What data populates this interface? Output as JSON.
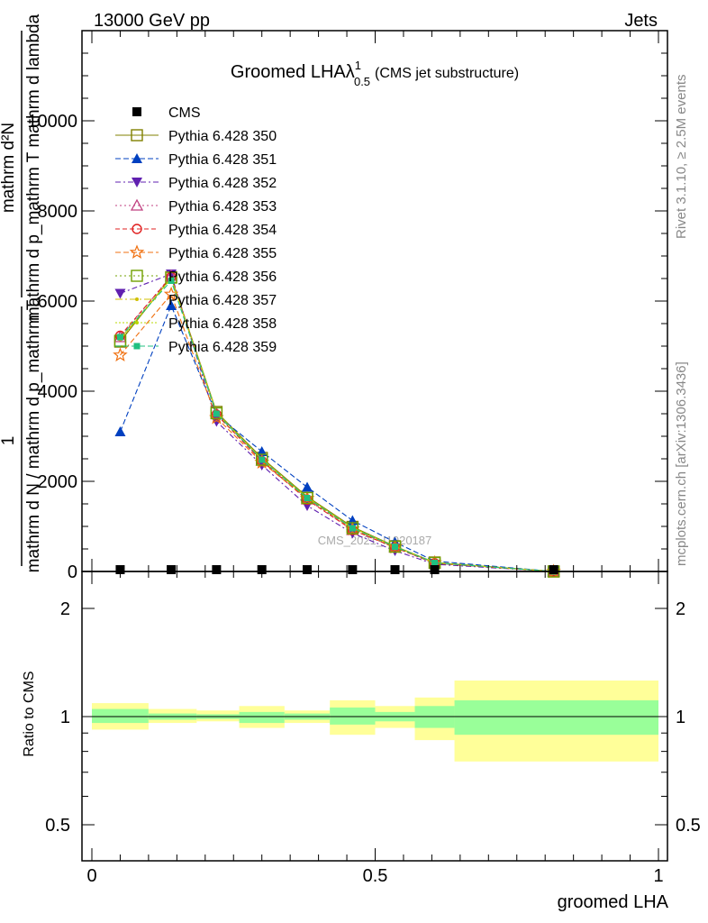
{
  "header": {
    "left": "13000 GeV pp",
    "right": "Jets"
  },
  "side_text": {
    "rivet": "Rivet 3.1.10, ≥ 2.5M events",
    "mcplots": "mcplots.cern.ch [arXiv:1306.3436]"
  },
  "watermark": "CMS_2021_I1920187",
  "title": {
    "main": "Groomed LHA",
    "lambda": "λ",
    "sup": "1",
    "sub": "0.5",
    "suffix": "(CMS jet substructure)"
  },
  "ylabel_top": {
    "numer_top": "mathrm d²N",
    "denom_top": "mathrm d p_mathrm T mathrm d lambda",
    "one": "1",
    "denom_bottom": "mathrm d N / mathrm d p_mathrm T"
  },
  "ylabel_ratio": "Ratio to CMS",
  "xlabel": "groomed LHA",
  "colors": {
    "data": "#000000",
    "band_inner": "#99ff99",
    "band_outer": "#ffff99"
  },
  "chart_data": {
    "type": "line",
    "x_edges": [
      0,
      0.1,
      0.2,
      0.3,
      0.4,
      0.5,
      0.6,
      0.7,
      0.8,
      0.9,
      1.0
    ],
    "xlim": [
      0,
      1
    ],
    "x_ticks": [
      "0",
      "0.5",
      "1"
    ],
    "ylim": [
      0,
      12000
    ],
    "y_ticks": [
      "0",
      "2000",
      "4000",
      "6000",
      "8000",
      "10000"
    ],
    "ratio_ylim": [
      0.4,
      2.4
    ],
    "ratio_y_ticks": [
      "0.5",
      "1",
      "2"
    ],
    "x": [
      0.05,
      0.14,
      0.22,
      0.3,
      0.38,
      0.46,
      0.535,
      0.605,
      0.815
    ],
    "cms": [
      0.4,
      0.4,
      0.4,
      0.4,
      0.4,
      0.4,
      0.4,
      0.4,
      0.4
    ],
    "ratio_bins": [
      {
        "x0": 0.0,
        "x1": 0.1,
        "stat": [
          0.96,
          1.05
        ],
        "total": [
          0.92,
          1.09
        ]
      },
      {
        "x0": 0.1,
        "x1": 0.185,
        "stat": [
          0.98,
          1.02
        ],
        "total": [
          0.96,
          1.05
        ]
      },
      {
        "x0": 0.185,
        "x1": 0.26,
        "stat": [
          0.985,
          1.015
        ],
        "total": [
          0.97,
          1.04
        ]
      },
      {
        "x0": 0.26,
        "x1": 0.34,
        "stat": [
          0.96,
          1.03
        ],
        "total": [
          0.93,
          1.07
        ]
      },
      {
        "x0": 0.34,
        "x1": 0.42,
        "stat": [
          0.98,
          1.02
        ],
        "total": [
          0.96,
          1.04
        ]
      },
      {
        "x0": 0.42,
        "x1": 0.5,
        "stat": [
          0.95,
          1.06
        ],
        "total": [
          0.89,
          1.11
        ]
      },
      {
        "x0": 0.5,
        "x1": 0.57,
        "stat": [
          0.97,
          1.03
        ],
        "total": [
          0.93,
          1.07
        ]
      },
      {
        "x0": 0.57,
        "x1": 0.64,
        "stat": [
          0.93,
          1.07
        ],
        "total": [
          0.86,
          1.13
        ]
      },
      {
        "x0": 0.64,
        "x1": 1.0,
        "stat": [
          0.89,
          1.11
        ],
        "total": [
          0.75,
          1.26
        ]
      }
    ],
    "series": [
      {
        "name": "CMS",
        "marker": "filled-square",
        "color": "#000000",
        "dash": "",
        "values": [
          40,
          40,
          40,
          40,
          40,
          40,
          40,
          40,
          40
        ]
      },
      {
        "name": "Pythia 6.428 350",
        "marker": "open-square",
        "color": "#808000",
        "dash": "",
        "values": [
          5100,
          6530,
          3540,
          2520,
          1660,
          990,
          560,
          200,
          0
        ]
      },
      {
        "name": "Pythia 6.428 351",
        "marker": "filled-triangle-up",
        "color": "#0040c0",
        "dash": "6,3",
        "values": [
          3100,
          5900,
          3480,
          2660,
          1870,
          1130,
          650,
          230,
          0
        ]
      },
      {
        "name": "Pythia 6.428 352",
        "marker": "filled-triangle-down",
        "color": "#6020b0",
        "dash": "6,3,2,3",
        "values": [
          6170,
          6600,
          3330,
          2360,
          1460,
          850,
          460,
          160,
          0
        ]
      },
      {
        "name": "Pythia 6.428 353",
        "marker": "open-triangle-up",
        "color": "#c04080",
        "dash": "2,3",
        "values": [
          5200,
          6560,
          3500,
          2460,
          1600,
          920,
          530,
          180,
          0
        ]
      },
      {
        "name": "Pythia 6.428 354",
        "marker": "open-circle",
        "color": "#e02020",
        "dash": "5,3",
        "values": [
          5230,
          6540,
          3480,
          2450,
          1590,
          920,
          530,
          180,
          0
        ]
      },
      {
        "name": "Pythia 6.428 355",
        "marker": "open-star",
        "color": "#f07010",
        "dash": "6,3",
        "values": [
          4800,
          6150,
          3410,
          2420,
          1620,
          940,
          540,
          190,
          0
        ]
      },
      {
        "name": "Pythia 6.428 356",
        "marker": "open-square",
        "color": "#70a000",
        "dash": "2,3",
        "values": [
          5120,
          6520,
          3510,
          2480,
          1630,
          960,
          550,
          190,
          0
        ]
      },
      {
        "name": "Pythia 6.428 357",
        "marker": "small-dot",
        "color": "#d0c000",
        "dash": "8,3,2,3",
        "values": [
          5150,
          6500,
          3520,
          2490,
          1640,
          970,
          555,
          195,
          0
        ]
      },
      {
        "name": "Pythia 6.428 358",
        "marker": "small-dot",
        "color": "#b8d800",
        "dash": "2,2",
        "values": [
          5170,
          6510,
          3520,
          2495,
          1640,
          970,
          555,
          195,
          0
        ]
      },
      {
        "name": "Pythia 6.428 359",
        "marker": "filled-square-small",
        "color": "#20c080",
        "dash": "6,3",
        "values": [
          5200,
          6450,
          3500,
          2480,
          1630,
          960,
          550,
          190,
          0
        ]
      }
    ]
  }
}
